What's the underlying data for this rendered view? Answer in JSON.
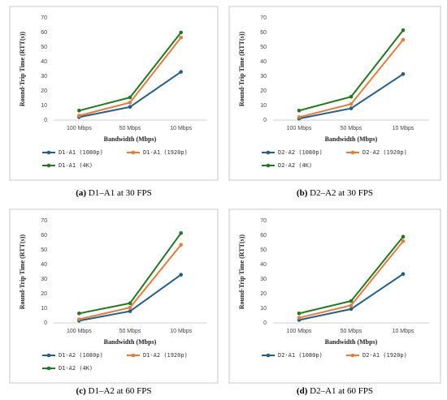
{
  "chart_data": [
    {
      "type": "line",
      "panel": "(a)",
      "caption": "D1–A1 at 30 FPS",
      "categories": [
        "100 Mbps",
        "50 Mbps",
        "10 Mbps"
      ],
      "x_label": "Bandwidth (Mbps)",
      "y_label": "Round-Trip Time (RTT(s))",
      "ylim": [
        0,
        70
      ],
      "yticks": [
        0,
        10,
        20,
        30,
        40,
        50,
        60,
        70
      ],
      "grid": false,
      "series": [
        {
          "name": "D1-A1 (1080p)",
          "color": "#1f5f8b",
          "values": [
            2,
            9,
            33
          ]
        },
        {
          "name": "D1-A1 (1920p)",
          "color": "#e97a3a",
          "values": [
            3,
            12,
            56.5
          ]
        },
        {
          "name": "D1-A1 (4K)",
          "color": "#1e7a1e",
          "values": [
            6.5,
            15.5,
            60
          ]
        }
      ]
    },
    {
      "type": "line",
      "panel": "(b)",
      "caption": "D2–A2 at 30 FPS",
      "categories": [
        "100 Mbps",
        "50 Mbps",
        "10 Mbps"
      ],
      "x_label": "Bandwidth (Mbps)",
      "y_label": "Round-Trip Time (RTT(s))",
      "ylim": [
        0,
        70
      ],
      "yticks": [
        0,
        10,
        20,
        30,
        40,
        50,
        60,
        70
      ],
      "grid": false,
      "series": [
        {
          "name": "D2-A2 (1080p)",
          "color": "#1f5f8b",
          "values": [
            1,
            8,
            31.5
          ]
        },
        {
          "name": "D2-A2 (1920p)",
          "color": "#e97a3a",
          "values": [
            2,
            11,
            55
          ]
        },
        {
          "name": "D2-A2 (4K)",
          "color": "#1e7a1e",
          "values": [
            6.5,
            16,
            61.5
          ]
        }
      ]
    },
    {
      "type": "line",
      "panel": "(c)",
      "caption": "D1–A2 at 60 FPS",
      "categories": [
        "100 Mbps",
        "50 Mbps",
        "10 Mbps"
      ],
      "x_label": "Bandwidth (Mbps)",
      "y_label": "Round-Trip Time (RTT(s))",
      "ylim": [
        0,
        70
      ],
      "yticks": [
        0,
        10,
        20,
        30,
        40,
        50,
        60,
        70
      ],
      "grid": false,
      "series": [
        {
          "name": "D1-A2 (1080p)",
          "color": "#1f5f8b",
          "values": [
            1.5,
            8,
            33
          ]
        },
        {
          "name": "D1-A2 (1920p)",
          "color": "#e97a3a",
          "values": [
            2.5,
            10.5,
            53.5
          ]
        },
        {
          "name": "D1-A2 (4K)",
          "color": "#1e7a1e",
          "values": [
            6.5,
            13.5,
            61.5
          ]
        }
      ]
    },
    {
      "type": "line",
      "panel": "(d)",
      "caption": "D2–A1 at 60 FPS",
      "categories": [
        "100 Mbps",
        "50 Mbps",
        "10 Mbps"
      ],
      "x_label": "Bandwidth (Mbps)",
      "y_label": "Round-Trip Time (RTT(s))",
      "ylim": [
        0,
        70
      ],
      "yticks": [
        0,
        10,
        20,
        30,
        40,
        50,
        60,
        70
      ],
      "grid": false,
      "series": [
        {
          "name": "D2-A1 (1080p)",
          "color": "#1f5f8b",
          "values": [
            2,
            9.5,
            33.5
          ]
        },
        {
          "name": "D2-A1 (1920p)",
          "color": "#e97a3a",
          "values": [
            3.5,
            12,
            56
          ]
        },
        {
          "color": "#1e7a1e",
          "values": [
            6.5,
            15,
            59
          ]
        }
      ]
    }
  ]
}
